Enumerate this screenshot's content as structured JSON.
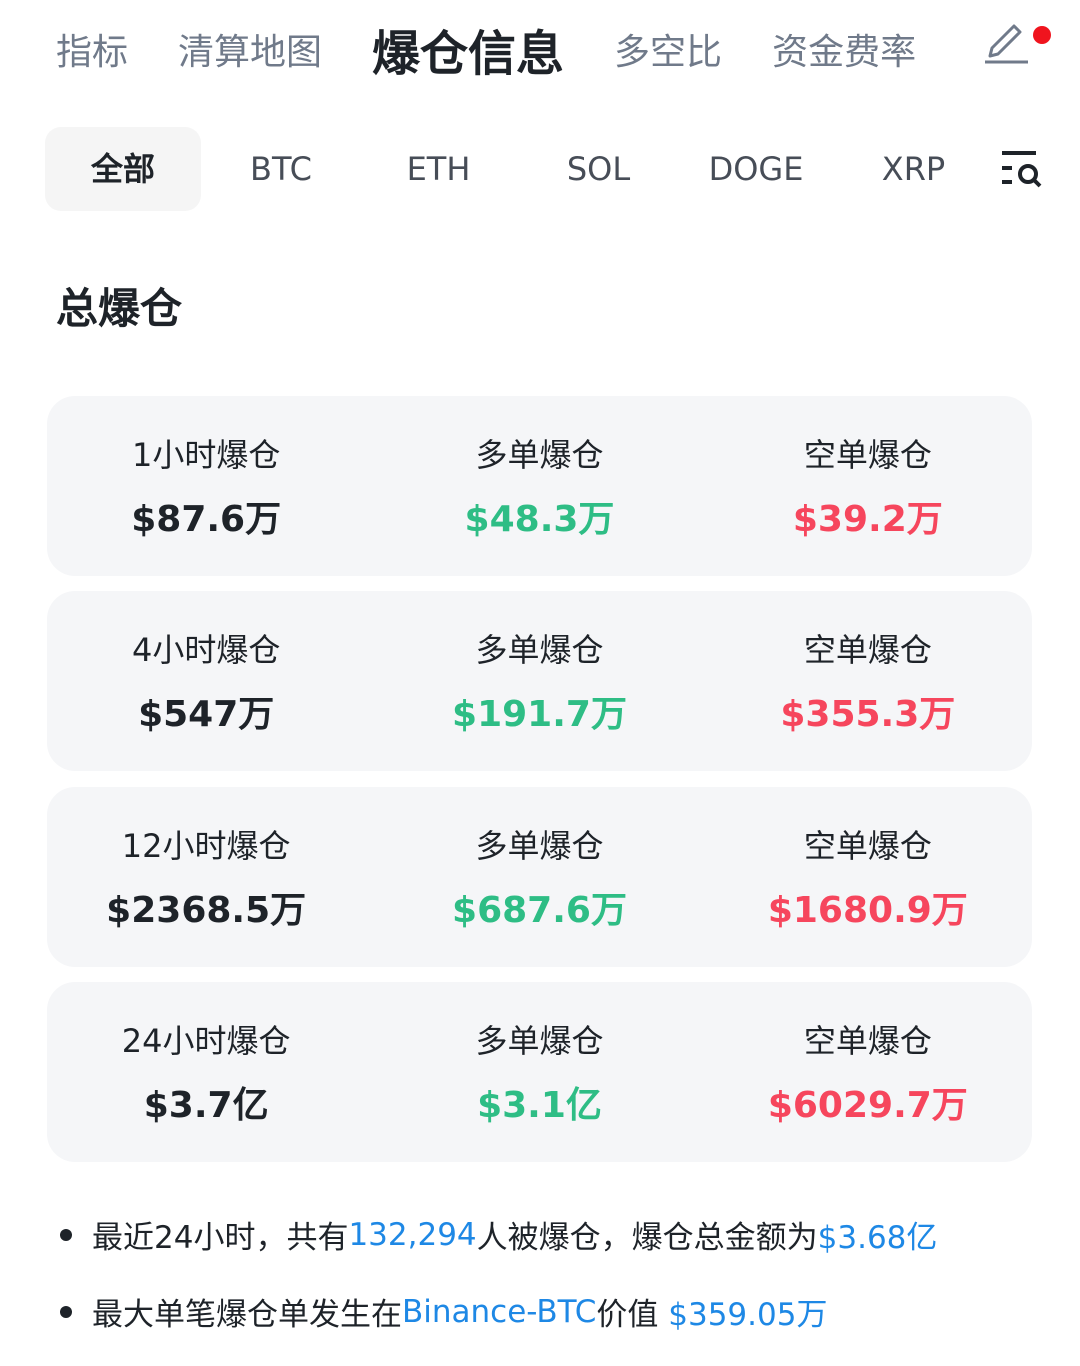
{
  "top_tabs": [
    "指标",
    "清算地图",
    "爆仓信息",
    "多空比",
    "资金费率"
  ],
  "active_top_tab": "爆仓信息",
  "coin_tabs": [
    "全部",
    "BTC",
    "ETH",
    "SOL",
    "DOGE",
    "XRP"
  ],
  "section_title": "总爆仓",
  "colors": {
    "long": "#2ebd85",
    "short": "#f6465d",
    "link": "#1e88e5",
    "notification": "#f0141e"
  },
  "rows": [
    {
      "period_label": "1小时爆仓",
      "total": "$87.6万",
      "long_label": "多单爆仓",
      "long": "$48.3万",
      "short_label": "空单爆仓",
      "short": "$39.2万"
    },
    {
      "period_label": "4小时爆仓",
      "total": "$547万",
      "long_label": "多单爆仓",
      "long": "$191.7万",
      "short_label": "空单爆仓",
      "short": "$355.3万"
    },
    {
      "period_label": "12小时爆仓",
      "total": "$2368.5万",
      "long_label": "多单爆仓",
      "long": "$687.6万",
      "short_label": "空单爆仓",
      "short": "$1680.9万"
    },
    {
      "period_label": "24小时爆仓",
      "total": "$3.7亿",
      "long_label": "多单爆仓",
      "long": "$3.1亿",
      "short_label": "空单爆仓",
      "short": "$6029.7万"
    }
  ],
  "notes": [
    {
      "p1": "最近24小时，共有",
      "n1": "132,294",
      "p2": "人被爆仓，爆仓总金额为",
      "n2": "$3.68亿"
    },
    {
      "p1": "最大单笔爆仓单发生在",
      "n1": "Binance-BTC",
      "p2": "价值 ",
      "n2": "$359.05万"
    }
  ]
}
